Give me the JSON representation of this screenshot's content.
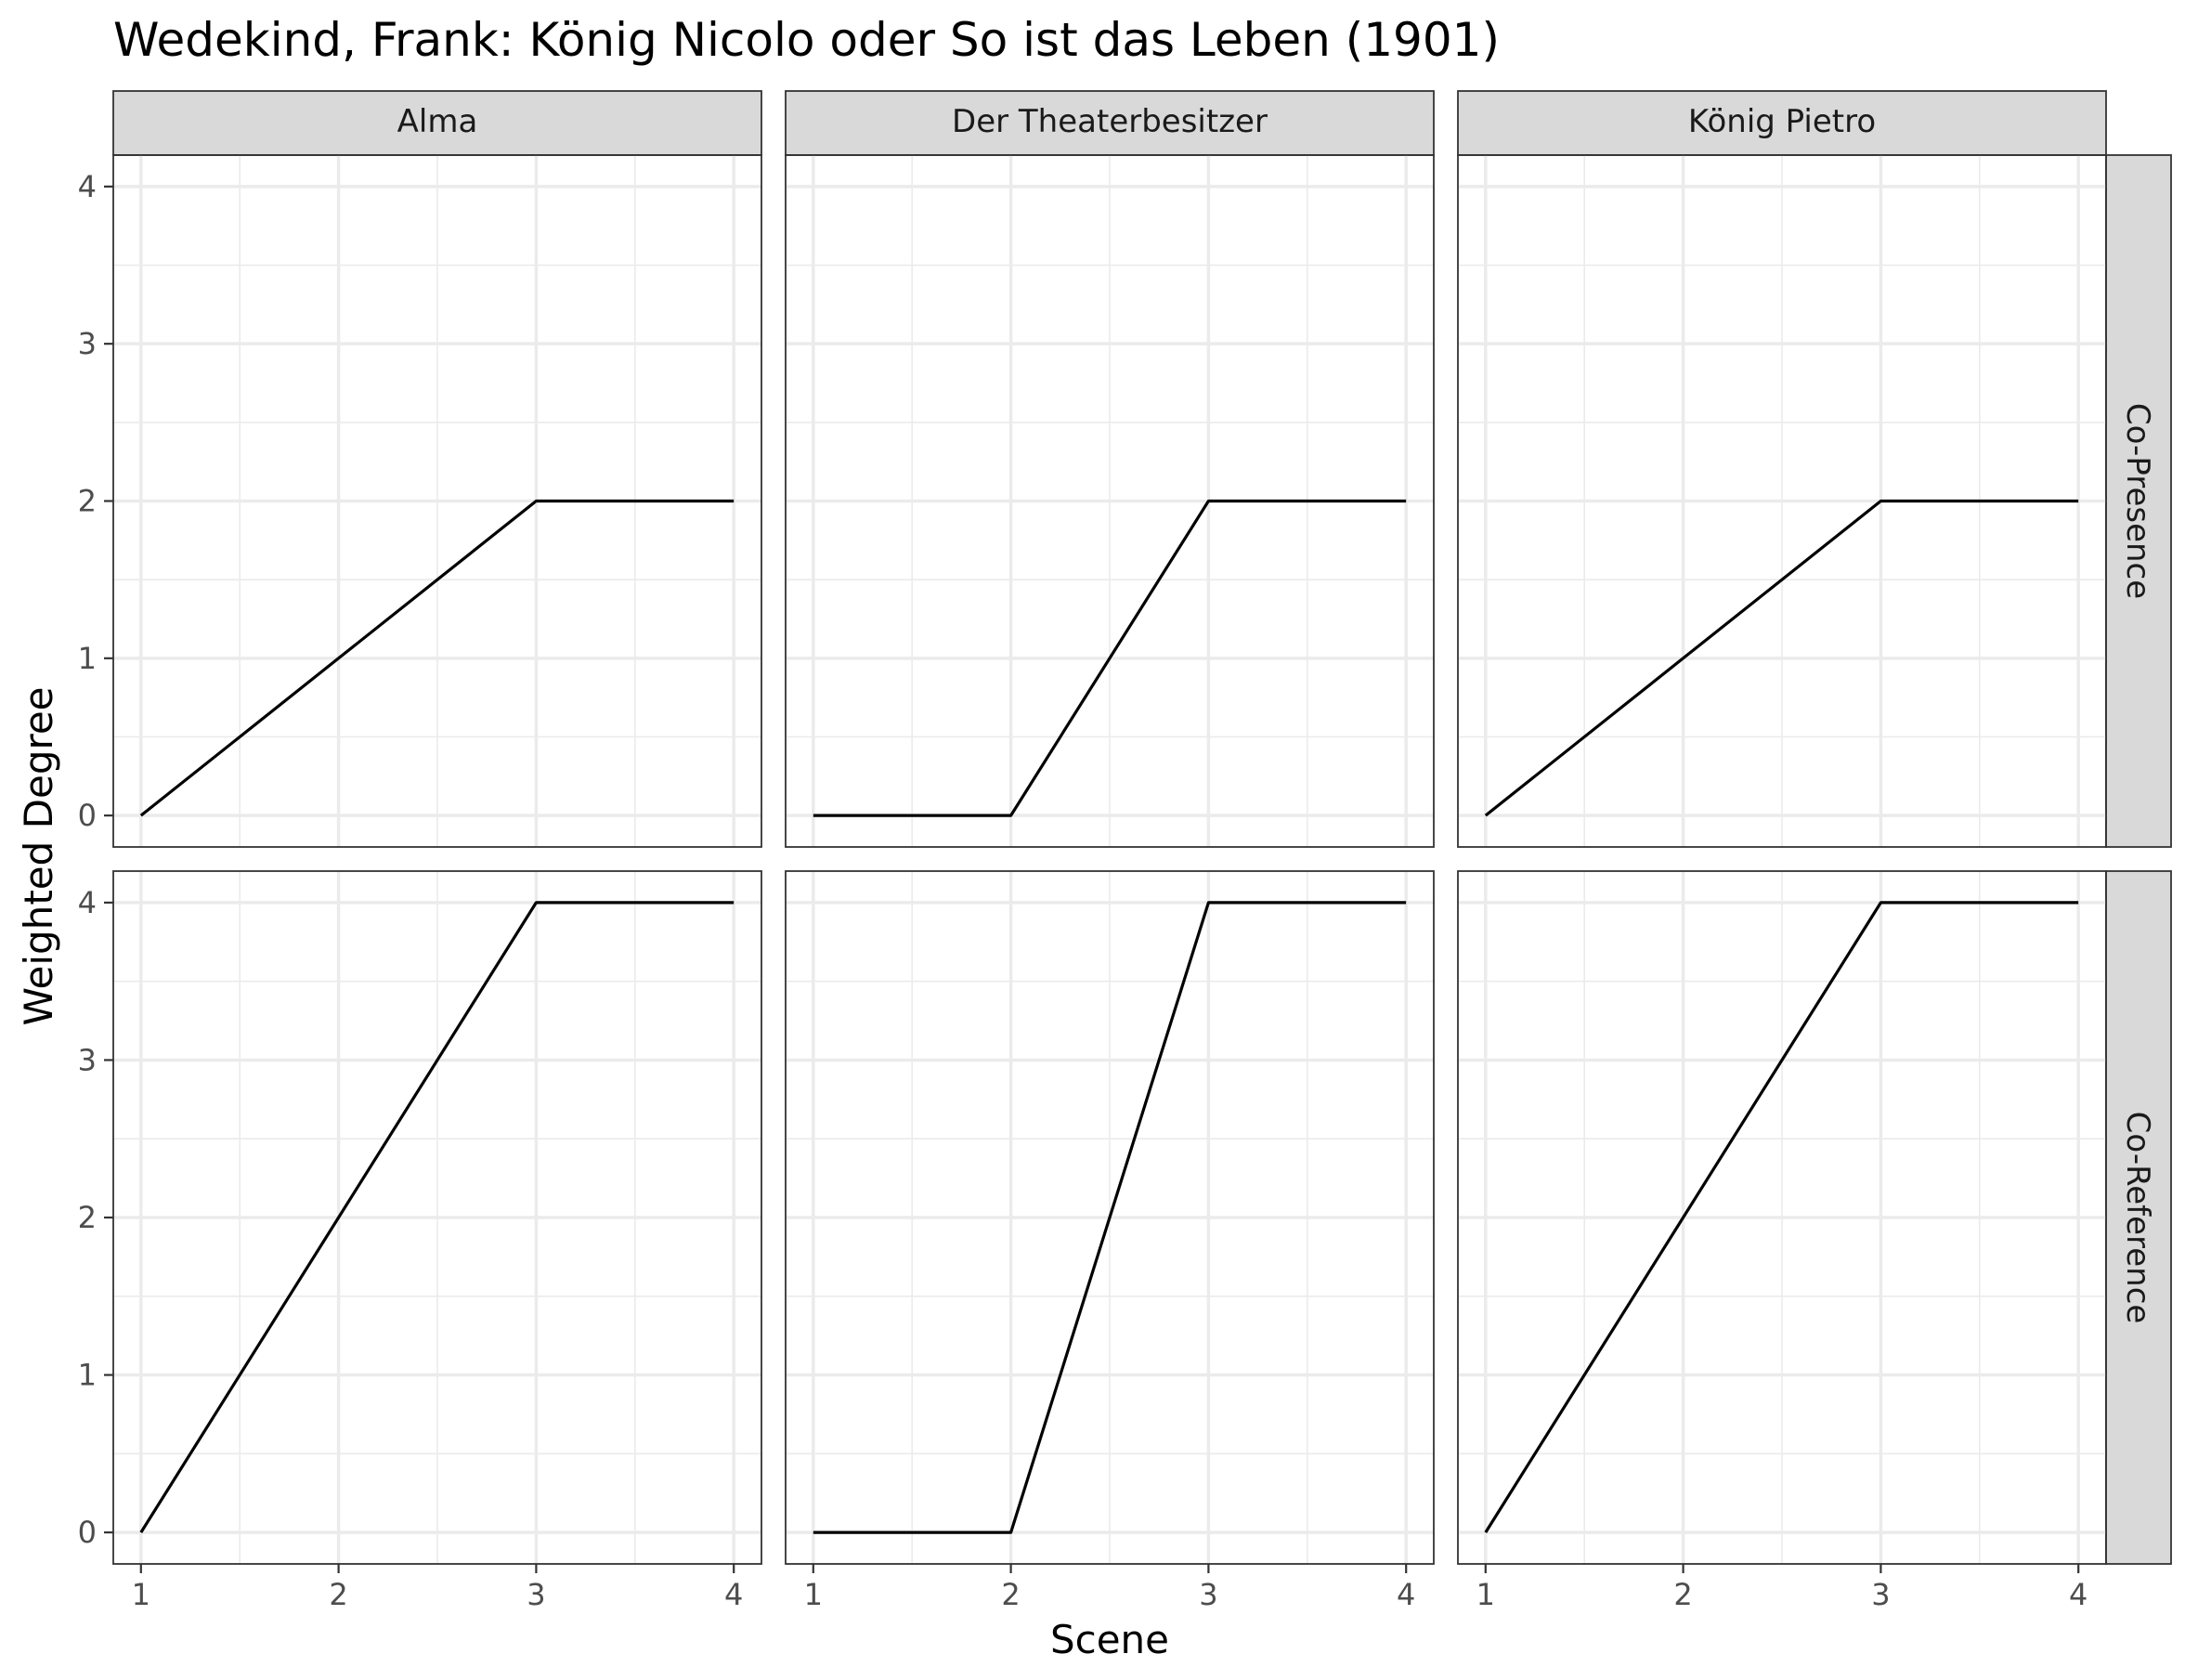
{
  "chart_data": {
    "type": "line",
    "title": "Wedekind, Frank: König Nicolo oder So ist das Leben (1901)",
    "xlabel": "Scene",
    "ylabel": "Weighted Degree",
    "x": [
      1,
      2,
      3,
      4
    ],
    "x_ticks": [
      "1",
      "2",
      "3",
      "4"
    ],
    "y_ticks": [
      "0",
      "1",
      "2",
      "3",
      "4"
    ],
    "xlim": [
      0.86,
      4.14
    ],
    "ylim": [
      -0.2,
      4.2
    ],
    "grid": true,
    "facet_columns": [
      "Alma",
      "Der Theaterbesitzer",
      "König Pietro"
    ],
    "facet_rows": [
      "Co-Presence",
      "Co-Reference"
    ],
    "panels": [
      {
        "row": "Co-Presence",
        "column": "Alma",
        "values": [
          0,
          1,
          2,
          2
        ]
      },
      {
        "row": "Co-Presence",
        "column": "Der Theaterbesitzer",
        "values": [
          0,
          0,
          2,
          2
        ]
      },
      {
        "row": "Co-Presence",
        "column": "König Pietro",
        "values": [
          0,
          1,
          2,
          2
        ]
      },
      {
        "row": "Co-Reference",
        "column": "Alma",
        "values": [
          0,
          2,
          4,
          4
        ]
      },
      {
        "row": "Co-Reference",
        "column": "Der Theaterbesitzer",
        "values": [
          0,
          0,
          4,
          4
        ]
      },
      {
        "row": "Co-Reference",
        "column": "König Pietro",
        "values": [
          0,
          2,
          4,
          4
        ]
      }
    ],
    "colors": {
      "line": "#000000",
      "strip": "#d9d9d9",
      "grid": "#ebebeb",
      "border": "#333333"
    }
  }
}
